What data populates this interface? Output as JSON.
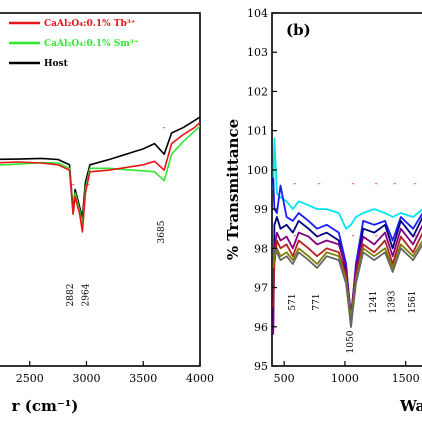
{
  "chart_data": [
    {
      "panel": "a",
      "type": "line",
      "xlabel": "r (cm⁻¹)",
      "x_ticks": [
        2500,
        3000,
        3500,
        4000
      ],
      "xlim": [
        2150,
        4000
      ],
      "ylim": [
        0,
        100
      ],
      "legend_position": "top-right",
      "legend": [
        {
          "text": "CaAl₂O₄:0.1% Tb³⁺",
          "color": "#e8141b"
        },
        {
          "text": "CaAl₂O₄:0.1% Sm³⁺",
          "color": "#2ee82e"
        },
        {
          "text": "Host",
          "color": "#000000"
        }
      ],
      "annotations": [
        "2882",
        "2964",
        "3685"
      ],
      "annotation_x": [
        2882,
        2964,
        3685
      ],
      "series": [
        {
          "color": "#000000",
          "x": [
            2150,
            2400,
            2600,
            2750,
            2850,
            2882,
            2900,
            2940,
            2964,
            2990,
            3030,
            3200,
            3400,
            3500,
            3600,
            3685,
            3750,
            3850,
            3950,
            4000
          ],
          "y": [
            58.5,
            58.6,
            58.8,
            58.5,
            57,
            44,
            50,
            45,
            42,
            52,
            57,
            58.5,
            60.5,
            61.5,
            63,
            60,
            66,
            67.5,
            69.5,
            70.5
          ]
        },
        {
          "color": "#2ee82e",
          "x": [
            2150,
            2400,
            2600,
            2750,
            2850,
            2882,
            2900,
            2940,
            2964,
            2990,
            3030,
            3200,
            3400,
            3500,
            3600,
            3685,
            3750,
            3850,
            3950,
            4000
          ],
          "y": [
            56.8,
            57.2,
            57.6,
            57.5,
            56,
            43,
            49,
            44,
            40,
            50,
            56,
            56,
            55.5,
            55.3,
            55,
            52.5,
            60,
            63.5,
            66.5,
            68
          ]
        },
        {
          "color": "#e8141b",
          "x": [
            2150,
            2400,
            2600,
            2750,
            2850,
            2882,
            2900,
            2940,
            2964,
            2990,
            3030,
            3200,
            3400,
            3500,
            3600,
            3685,
            3750,
            3850,
            3950,
            4000
          ],
          "y": [
            57.5,
            57.8,
            57.5,
            57,
            55.5,
            43,
            48,
            43,
            38,
            49,
            55,
            55.5,
            56.5,
            57,
            58,
            55.5,
            63,
            65.5,
            67.5,
            69
          ]
        }
      ]
    },
    {
      "panel": "b",
      "panel_label": "(b)",
      "type": "line",
      "ylabel": "% Transmittance",
      "xlabel": "Wa",
      "x_ticks": [
        500,
        1000,
        1500
      ],
      "y_ticks": [
        95,
        96,
        97,
        98,
        99,
        100,
        101,
        102,
        103,
        104
      ],
      "xlim": [
        400,
        1700
      ],
      "ylim": [
        95,
        104
      ],
      "annotations": [
        "571",
        "771",
        "1050",
        "1241",
        "1393",
        "1561"
      ],
      "annotation_x": [
        571,
        771,
        1050,
        1241,
        1393,
        1561
      ],
      "series": [
        {
          "color": "#00e5ee",
          "x": [
            410,
            420,
            440,
            470,
            520,
            571,
            620,
            700,
            771,
            850,
            950,
            1010,
            1050,
            1090,
            1150,
            1241,
            1330,
            1393,
            1460,
            1561,
            1640,
            1700
          ],
          "y": [
            99.5,
            100.8,
            99.4,
            99.3,
            99.2,
            99.0,
            99.2,
            99.1,
            99.0,
            99.0,
            98.9,
            98.5,
            98.6,
            98.8,
            98.9,
            99.0,
            98.9,
            98.8,
            98.9,
            98.8,
            99.0,
            99.1
          ]
        },
        {
          "color": "#1a1aff",
          "x": [
            410,
            420,
            440,
            470,
            520,
            571,
            620,
            700,
            771,
            850,
            950,
            1010,
            1050,
            1090,
            1150,
            1241,
            1330,
            1393,
            1460,
            1561,
            1640,
            1700
          ],
          "y": [
            99.8,
            99.0,
            98.9,
            99.6,
            98.8,
            98.7,
            98.9,
            98.7,
            98.5,
            98.6,
            98.4,
            97.6,
            96.2,
            97.6,
            98.7,
            98.6,
            98.7,
            98.2,
            98.8,
            98.5,
            98.9,
            98.9
          ]
        },
        {
          "color": "#000080",
          "x": [
            410,
            420,
            440,
            470,
            520,
            571,
            620,
            700,
            771,
            850,
            950,
            1010,
            1050,
            1090,
            1150,
            1241,
            1330,
            1393,
            1460,
            1561,
            1640,
            1700
          ],
          "y": [
            96.0,
            98.6,
            98.8,
            98.5,
            98.6,
            98.4,
            98.7,
            98.5,
            98.3,
            98.4,
            98.2,
            97.4,
            96.0,
            97.4,
            98.5,
            98.4,
            98.6,
            98.0,
            98.7,
            98.3,
            98.8,
            98.8
          ]
        },
        {
          "color": "#800080",
          "x": [
            410,
            420,
            440,
            470,
            520,
            571,
            620,
            700,
            771,
            850,
            950,
            1010,
            1050,
            1090,
            1150,
            1241,
            1330,
            1393,
            1460,
            1561,
            1640,
            1700
          ],
          "y": [
            95.8,
            98.0,
            98.4,
            98.2,
            98.3,
            98.0,
            98.4,
            98.3,
            98.1,
            98.2,
            98.1,
            97.5,
            96.3,
            97.5,
            98.3,
            98.1,
            98.4,
            97.8,
            98.5,
            98.1,
            98.6,
            98.6
          ]
        },
        {
          "color": "#b22222",
          "x": [
            410,
            420,
            440,
            470,
            520,
            571,
            620,
            700,
            771,
            850,
            950,
            1010,
            1050,
            1090,
            1150,
            1241,
            1330,
            1393,
            1460,
            1561,
            1640,
            1700
          ],
          "y": [
            96.5,
            97.6,
            98.2,
            98.0,
            98.1,
            97.8,
            98.2,
            98.0,
            97.8,
            98.0,
            97.9,
            97.3,
            96.1,
            97.3,
            98.1,
            97.9,
            98.2,
            97.6,
            98.3,
            97.9,
            98.4,
            98.4
          ]
        },
        {
          "color": "#808000",
          "x": [
            410,
            420,
            440,
            470,
            520,
            571,
            620,
            700,
            771,
            850,
            950,
            1010,
            1050,
            1090,
            1150,
            1241,
            1330,
            1393,
            1460,
            1561,
            1640,
            1700
          ],
          "y": [
            97.5,
            97.8,
            98.0,
            97.8,
            97.9,
            97.7,
            98.0,
            97.8,
            97.6,
            97.9,
            97.8,
            97.2,
            96.2,
            97.2,
            98.0,
            97.8,
            98.0,
            97.5,
            98.1,
            97.8,
            98.2,
            98.2
          ]
        },
        {
          "color": "#666666",
          "x": [
            410,
            420,
            440,
            470,
            520,
            571,
            620,
            700,
            771,
            850,
            950,
            1010,
            1050,
            1090,
            1150,
            1241,
            1330,
            1393,
            1460,
            1561,
            1640,
            1700
          ],
          "y": [
            97.8,
            98.0,
            97.9,
            97.7,
            97.8,
            97.6,
            97.9,
            97.7,
            97.5,
            97.8,
            97.7,
            97.1,
            96.0,
            97.1,
            97.9,
            97.7,
            97.9,
            97.4,
            98.0,
            97.7,
            98.1,
            98.1
          ]
        }
      ]
    }
  ]
}
